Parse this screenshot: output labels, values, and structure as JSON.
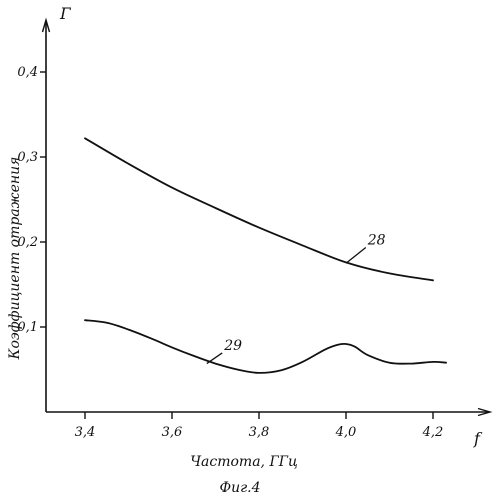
{
  "chart_data": {
    "type": "line",
    "title": "",
    "xlabel": "Частота, ГГц",
    "ylabel": "Коэффициент отражения",
    "x_symbol": "f",
    "y_symbol": "Г",
    "figure_caption": "Фиг.4",
    "xlim": [
      3.3,
      4.35
    ],
    "ylim": [
      0,
      0.46
    ],
    "x_ticks": [
      3.4,
      3.6,
      3.8,
      4.0,
      4.2
    ],
    "x_tick_labels": [
      "3,4",
      "3,6",
      "3,8",
      "4,0",
      "4,2"
    ],
    "y_ticks": [
      0.1,
      0.2,
      0.3,
      0.4
    ],
    "y_tick_labels": [
      "0,1",
      "0,2",
      "0,3",
      "0,4"
    ],
    "grid": false,
    "legend": "none",
    "colors": {
      "ink": "#111111",
      "background": "#ffffff"
    },
    "series": [
      {
        "name": "28",
        "label_at": {
          "x": 4.05,
          "y": 0.197
        },
        "leader_from": {
          "x": 4.0,
          "y": 0.175
        },
        "x": [
          3.4,
          3.5,
          3.6,
          3.7,
          3.8,
          3.9,
          4.0,
          4.1,
          4.2
        ],
        "y": [
          0.322,
          0.292,
          0.264,
          0.24,
          0.217,
          0.196,
          0.176,
          0.163,
          0.155
        ]
      },
      {
        "name": "29",
        "label_at": {
          "x": 3.72,
          "y": 0.073
        },
        "leader_from": {
          "x": 3.68,
          "y": 0.057
        },
        "x": [
          3.4,
          3.45,
          3.5,
          3.55,
          3.6,
          3.65,
          3.7,
          3.75,
          3.8,
          3.85,
          3.9,
          3.95,
          3.98,
          4.0,
          4.02,
          4.05,
          4.1,
          4.15,
          4.2,
          4.23
        ],
        "y": [
          0.108,
          0.105,
          0.097,
          0.087,
          0.076,
          0.066,
          0.057,
          0.05,
          0.046,
          0.049,
          0.059,
          0.073,
          0.079,
          0.08,
          0.077,
          0.067,
          0.058,
          0.057,
          0.059,
          0.058
        ]
      }
    ]
  }
}
